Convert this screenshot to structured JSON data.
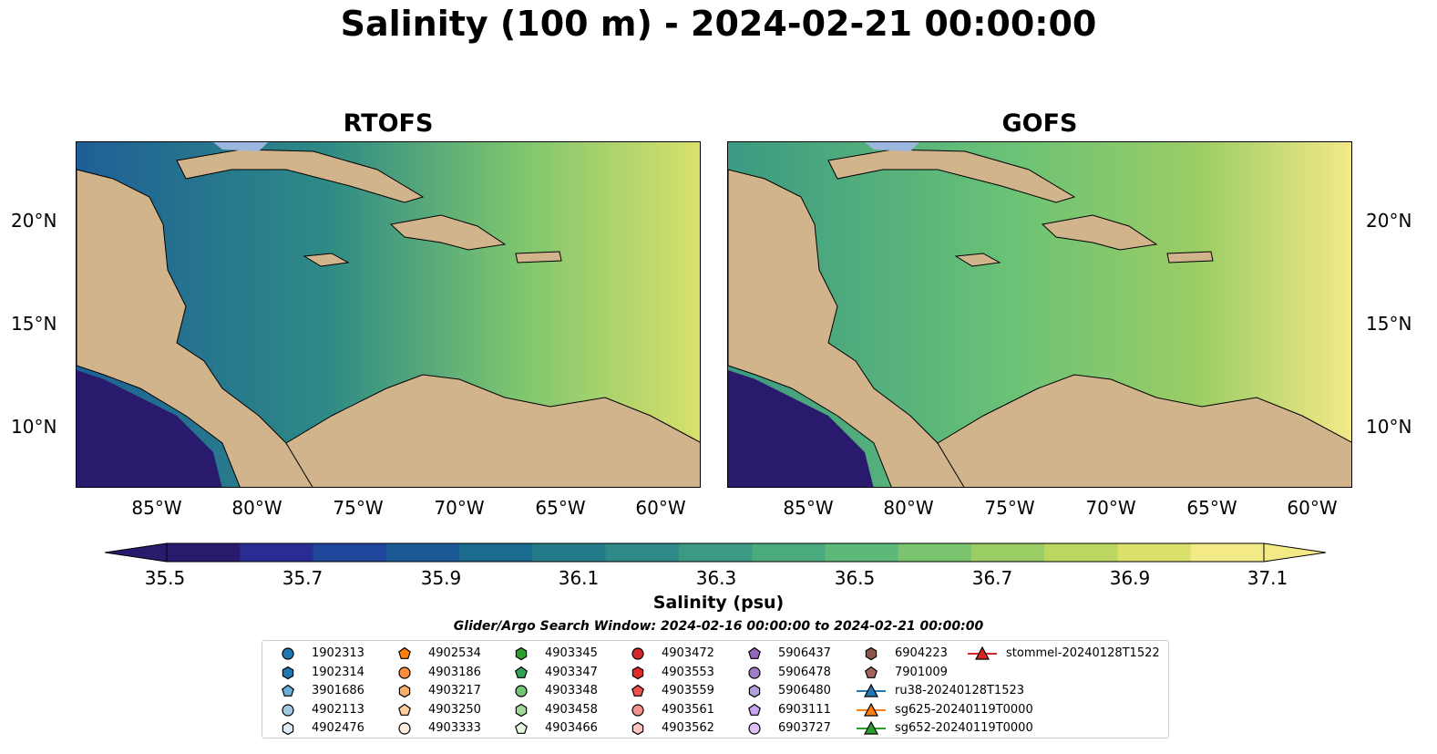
{
  "title": "Salinity (100 m) - 2024-02-21 00:00:00",
  "panels": [
    {
      "title": "RTOFS",
      "bg": "#2a9188"
    },
    {
      "title": "GOFS",
      "bg": "#5cbd7e"
    }
  ],
  "lat_labels": [
    "20°N",
    "15°N",
    "10°N"
  ],
  "lon_labels": [
    "85°W",
    "80°W",
    "75°W",
    "70°W",
    "65°W",
    "60°W"
  ],
  "colorbar": {
    "label": "Salinity (psu)",
    "ticks": [
      "35.5",
      "35.7",
      "35.9",
      "36.1",
      "36.3",
      "36.5",
      "36.7",
      "36.9",
      "37.1"
    ],
    "colors": [
      "#2a1a6e",
      "#2a2c94",
      "#1e469a",
      "#1b5a95",
      "#1b6b8f",
      "#237b8a",
      "#2e8a86",
      "#3b9a82",
      "#4aaa7e",
      "#5db97a",
      "#7bc46f",
      "#9bcd65",
      "#bbd762",
      "#d9e16a",
      "#f4e987"
    ]
  },
  "search_window": "Glider/Argo Search Window: 2024-02-16 00:00:00 to 2024-02-21 00:00:00",
  "legend": [
    {
      "label": "1902313",
      "shape": "circle",
      "color": "#1f77b4"
    },
    {
      "label": "1902314",
      "shape": "hexagon",
      "color": "#1f77b4"
    },
    {
      "label": "3901686",
      "shape": "pentagon",
      "color": "#6baed6"
    },
    {
      "label": "4902113",
      "shape": "circle",
      "color": "#9ecae1"
    },
    {
      "label": "4902476",
      "shape": "hexagon",
      "color": "#deebf7"
    },
    {
      "label": "4902534",
      "shape": "pentagon",
      "color": "#ff7f0e"
    },
    {
      "label": "4903186",
      "shape": "circle",
      "color": "#fd8d3c"
    },
    {
      "label": "4903217",
      "shape": "hexagon",
      "color": "#fdae6b"
    },
    {
      "label": "4903250",
      "shape": "pentagon",
      "color": "#fdd0a2"
    },
    {
      "label": "4903333",
      "shape": "circle",
      "color": "#feedde"
    },
    {
      "label": "4903345",
      "shape": "hexagon",
      "color": "#2ca02c"
    },
    {
      "label": "4903347",
      "shape": "pentagon",
      "color": "#31a354"
    },
    {
      "label": "4903348",
      "shape": "circle",
      "color": "#74c476"
    },
    {
      "label": "4903458",
      "shape": "hexagon",
      "color": "#a1d99b"
    },
    {
      "label": "4903466",
      "shape": "pentagon",
      "color": "#e5f5e0"
    },
    {
      "label": "4903472",
      "shape": "circle",
      "color": "#d62728"
    },
    {
      "label": "4903553",
      "shape": "hexagon",
      "color": "#de2d26"
    },
    {
      "label": "4903559",
      "shape": "pentagon",
      "color": "#ef5350"
    },
    {
      "label": "4903561",
      "shape": "circle",
      "color": "#f4908b"
    },
    {
      "label": "4903562",
      "shape": "hexagon",
      "color": "#fcc5c0"
    },
    {
      "label": "5906437",
      "shape": "pentagon",
      "color": "#9467bd"
    },
    {
      "label": "5906478",
      "shape": "circle",
      "color": "#a17cc9"
    },
    {
      "label": "5906480",
      "shape": "hexagon",
      "color": "#b39ddb"
    },
    {
      "label": "6903111",
      "shape": "pentagon",
      "color": "#c9a5f0"
    },
    {
      "label": "6903727",
      "shape": "circle",
      "color": "#e1bff5"
    },
    {
      "label": "6904223",
      "shape": "hexagon",
      "color": "#8c564b"
    },
    {
      "label": "7901009",
      "shape": "pentagon",
      "color": "#a0665c"
    },
    {
      "label": "ru38-20240128T1523",
      "shape": "triangle",
      "color": "#1f77b4"
    },
    {
      "label": "sg625-20240119T0000",
      "shape": "triangle",
      "color": "#ff7f0e"
    },
    {
      "label": "sg652-20240119T0000",
      "shape": "triangle",
      "color": "#2ca02c"
    },
    {
      "label": "stommel-20240128T1522",
      "shape": "triangle",
      "color": "#d62728"
    }
  ]
}
